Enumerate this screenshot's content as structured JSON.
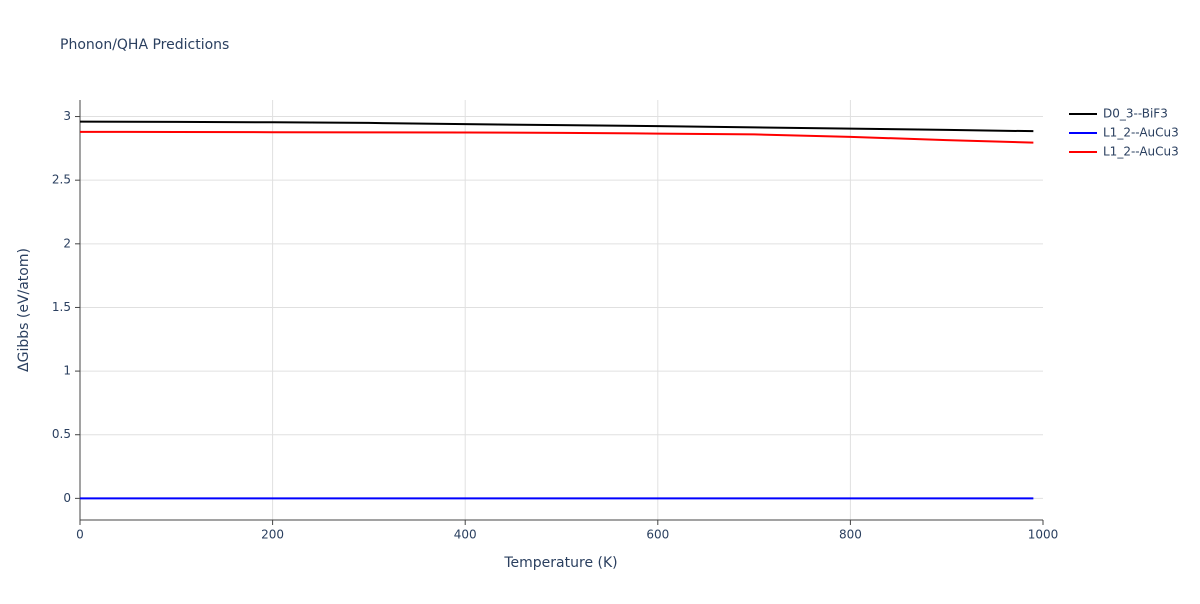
{
  "chart_data": {
    "type": "line",
    "title": "Phonon/QHA Predictions",
    "x_label": "Temperature (K)",
    "y_label": "ΔGibbs (eV/atom)",
    "x": [
      0,
      100,
      200,
      300,
      400,
      500,
      600,
      700,
      800,
      900,
      990
    ],
    "series": [
      {
        "name": "D0_3--BiF3",
        "color": "#000000",
        "values": [
          2.96,
          2.958,
          2.955,
          2.95,
          2.94,
          2.933,
          2.925,
          2.915,
          2.905,
          2.895,
          2.885
        ]
      },
      {
        "name": "L1_2--AuCu3",
        "color": "#0000ff",
        "values": [
          0,
          0,
          0,
          0,
          0,
          0,
          0,
          0,
          0,
          0,
          0
        ]
      },
      {
        "name": "L1_2--AuCu3",
        "color": "#ff0000",
        "values": [
          2.88,
          2.879,
          2.877,
          2.876,
          2.875,
          2.872,
          2.866,
          2.86,
          2.84,
          2.815,
          2.795
        ]
      }
    ],
    "xlim": [
      0,
      1000
    ],
    "xticks": [
      0,
      200,
      400,
      600,
      800,
      1000
    ],
    "ylim": [
      -0.17,
      3.13
    ],
    "yticks": [
      0,
      0.5,
      1,
      1.5,
      2,
      2.5,
      3
    ],
    "grid": true,
    "legend": "right"
  }
}
